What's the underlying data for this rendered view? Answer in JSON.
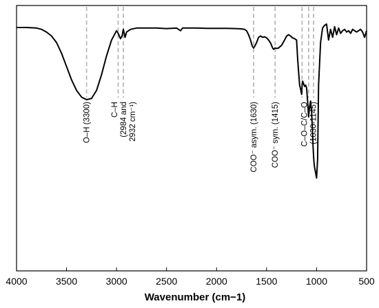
{
  "chart_data": {
    "type": "line",
    "title": "",
    "xlabel": "Wavenumber (cm−1)",
    "ylabel": "",
    "xlim": [
      4000,
      500
    ],
    "x_reversed": true,
    "xticks": [
      4000,
      3500,
      3000,
      2500,
      2000,
      1500,
      1000,
      500
    ],
    "y_axis_visible": false,
    "y_units": "relative transmittance (0 = bottom, 1 = top)",
    "grid": false,
    "legend": "none",
    "line_color": "#000000",
    "marker_color": "#b0b0b0",
    "series": [
      {
        "x": [
          4000,
          3900,
          3800,
          3750,
          3700,
          3650,
          3600,
          3550,
          3500,
          3450,
          3400,
          3350,
          3300,
          3250,
          3200,
          3150,
          3100,
          3050,
          3000,
          2984,
          2960,
          2945,
          2932,
          2915,
          2900,
          2880,
          2860,
          2800,
          2700,
          2600,
          2500,
          2400,
          2360,
          2340,
          2300,
          2200,
          2100,
          2000,
          1900,
          1800,
          1750,
          1720,
          1700,
          1680,
          1660,
          1650,
          1640,
          1630,
          1620,
          1600,
          1580,
          1560,
          1540,
          1520,
          1500,
          1480,
          1460,
          1440,
          1430,
          1415,
          1400,
          1380,
          1350,
          1320,
          1300,
          1280,
          1260,
          1240,
          1220,
          1200,
          1190,
          1180,
          1170,
          1160,
          1150,
          1145,
          1140,
          1130,
          1120,
          1110,
          1100,
          1090,
          1080,
          1070,
          1060,
          1050,
          1045,
          1040,
          1035,
          1030,
          1025,
          1020,
          1010,
          1000,
          990,
          980,
          960,
          940,
          920,
          900,
          880,
          860,
          840,
          820,
          800,
          780,
          760,
          740,
          720,
          700,
          680,
          660,
          640,
          620,
          600,
          580,
          560,
          540,
          520,
          500
        ],
        "y": [
          0.917,
          0.917,
          0.915,
          0.91,
          0.9,
          0.885,
          0.86,
          0.82,
          0.77,
          0.72,
          0.68,
          0.655,
          0.645,
          0.65,
          0.68,
          0.74,
          0.81,
          0.87,
          0.905,
          0.895,
          0.875,
          0.885,
          0.91,
          0.88,
          0.9,
          0.905,
          0.91,
          0.915,
          0.915,
          0.915,
          0.913,
          0.915,
          0.905,
          0.915,
          0.915,
          0.915,
          0.914,
          0.914,
          0.914,
          0.913,
          0.912,
          0.91,
          0.905,
          0.89,
          0.87,
          0.855,
          0.845,
          0.84,
          0.845,
          0.86,
          0.88,
          0.885,
          0.88,
          0.882,
          0.878,
          0.87,
          0.858,
          0.84,
          0.835,
          0.84,
          0.838,
          0.84,
          0.85,
          0.87,
          0.885,
          0.89,
          0.885,
          0.878,
          0.875,
          0.87,
          0.8,
          0.75,
          0.7,
          0.685,
          0.665,
          0.7,
          0.715,
          0.705,
          0.695,
          0.7,
          0.69,
          0.64,
          0.58,
          0.62,
          0.64,
          0.6,
          0.56,
          0.52,
          0.47,
          0.43,
          0.405,
          0.39,
          0.37,
          0.35,
          0.42,
          0.7,
          0.86,
          0.915,
          0.925,
          0.93,
          0.87,
          0.91,
          0.88,
          0.92,
          0.89,
          0.915,
          0.895,
          0.905,
          0.91,
          0.9,
          0.905,
          0.895,
          0.91,
          0.905,
          0.9,
          0.905,
          0.91,
          0.9,
          0.88,
          0.905
        ]
      }
    ],
    "annotations": [
      {
        "x": 3300,
        "lines": [
          "O–H (3300)"
        ],
        "label_position": "below"
      },
      {
        "x": 2984,
        "lines": [],
        "label_position": "none"
      },
      {
        "x": 2932,
        "lines": [
          "C–H",
          "(2984 and",
          "2932 cm⁻¹)"
        ],
        "label_position": "below"
      },
      {
        "x": 1630,
        "lines": [
          "COO⁻ asym. (1630)"
        ],
        "label_position": "below"
      },
      {
        "x": 1415,
        "lines": [
          "COO⁻ sym. (1415)"
        ],
        "label_position": "below"
      },
      {
        "x": 1145,
        "lines": [],
        "label_position": "none"
      },
      {
        "x": 1080,
        "lines": [
          "C–O–C/C–O",
          "(1030-1145)"
        ],
        "label_position": "below"
      },
      {
        "x": 1030,
        "lines": [],
        "label_position": "none"
      }
    ]
  }
}
